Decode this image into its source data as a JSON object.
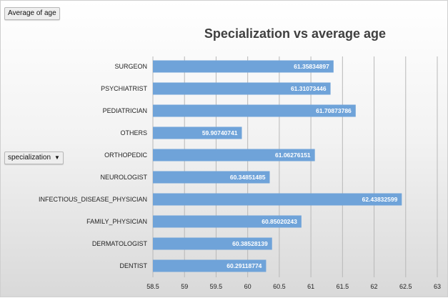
{
  "pivot": {
    "value_field": "Average of age",
    "axis_field": "specialization"
  },
  "colors": {
    "bar": "#6fa3d9",
    "grid": "#b8b8b8"
  },
  "chart_data": {
    "type": "bar",
    "orientation": "horizontal",
    "title": "Specialization vs average age",
    "categories": [
      "SURGEON",
      "PSYCHIATRIST",
      "PEDIATRICIAN",
      "OTHERS",
      "ORTHOPEDIC",
      "NEUROLOGIST",
      "INFECTIOUS_DISEASE_PHYSICIAN",
      "FAMILY_PHYSICIAN",
      "DERMATOLOGIST",
      "DENTIST"
    ],
    "values": [
      61.35834897,
      61.31073446,
      61.70873786,
      59.90740741,
      61.06276151,
      60.34851485,
      62.43832599,
      60.85020243,
      60.38528139,
      60.29118774
    ],
    "data_labels": [
      "61.35834897",
      "61.31073446",
      "61.70873786",
      "59.90740741",
      "61.06276151",
      "60.34851485",
      "62.43832599",
      "60.85020243",
      "60.38528139",
      "60.29118774"
    ],
    "xlim": [
      58.5,
      63
    ],
    "ticks": [
      "58.5",
      "59",
      "59.5",
      "60",
      "60.5",
      "61",
      "61.5",
      "62",
      "62.5",
      "63"
    ],
    "grid": true,
    "legend": "none"
  }
}
